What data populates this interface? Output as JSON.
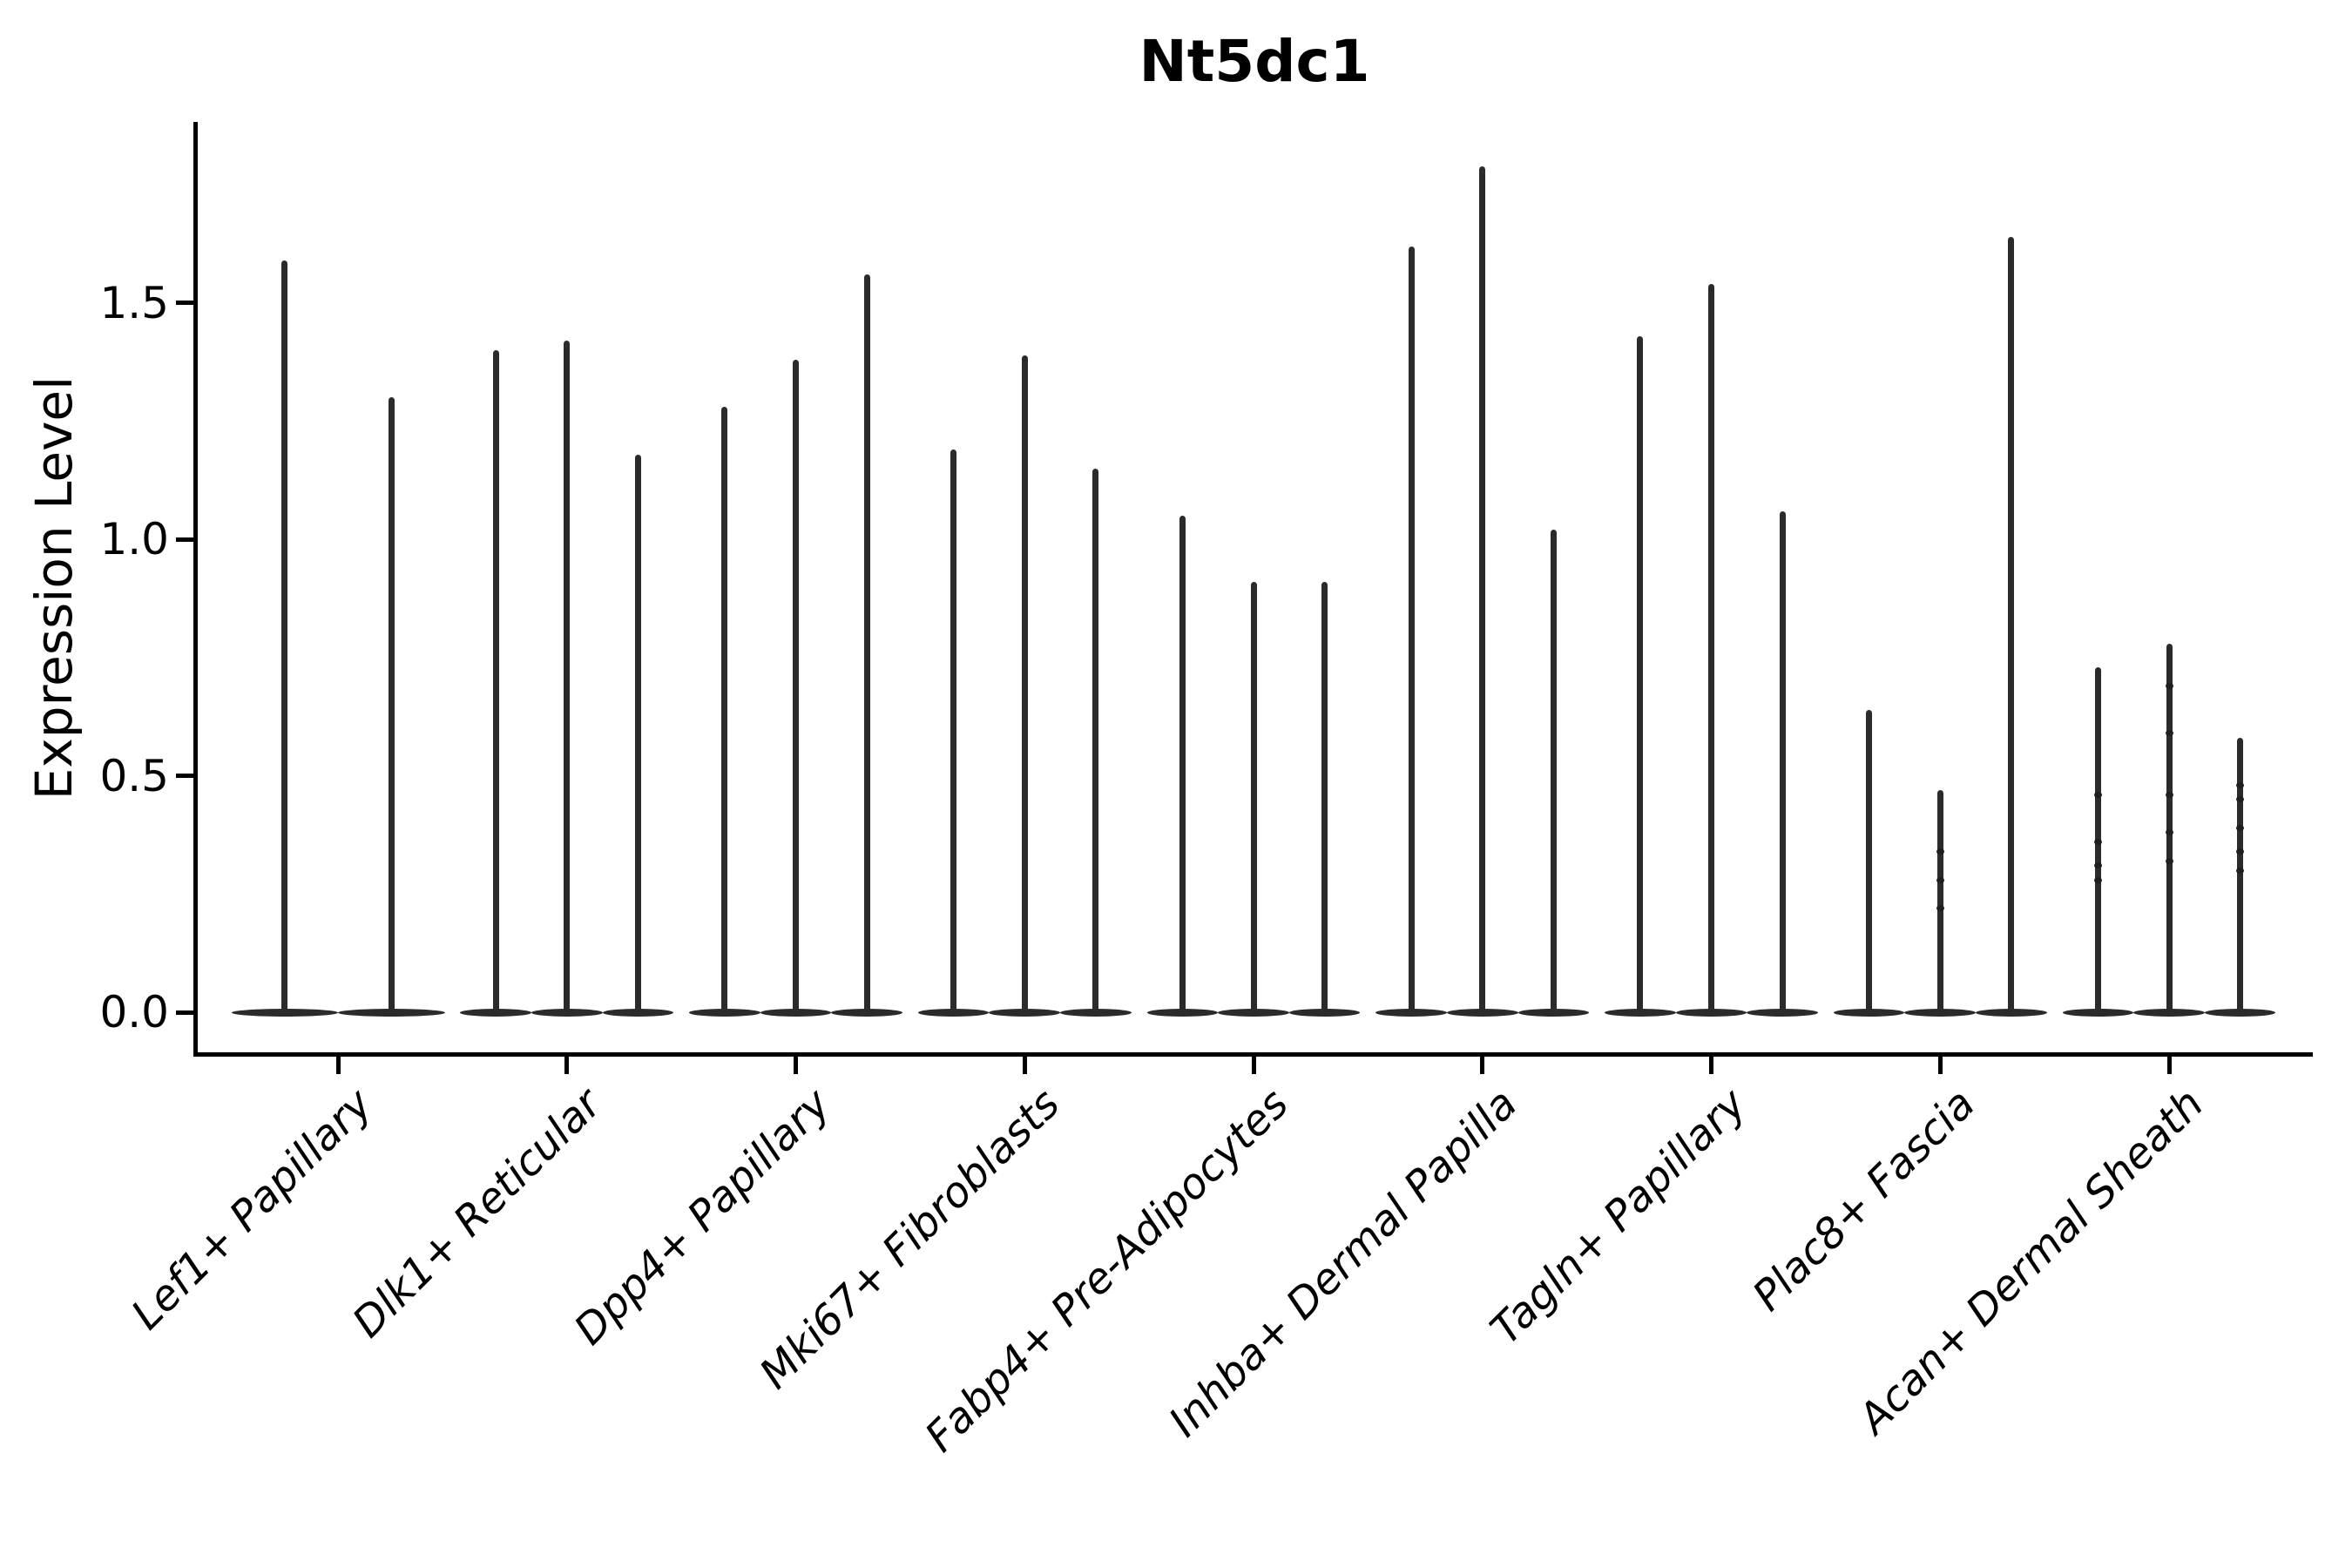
{
  "chart_data": {
    "type": "violin",
    "title": "Nt5dc1",
    "xlabel": "",
    "ylabel": "Expression Level",
    "ytick_labels": [
      "0.0",
      "0.5",
      "1.0",
      "1.5"
    ],
    "ytick_values": [
      0.0,
      0.5,
      1.0,
      1.5
    ],
    "ylim": [
      -0.09,
      1.88
    ],
    "grid": false,
    "legend": "none",
    "background": "#ffffff",
    "colors": {
      "violin": "#2b2b2b",
      "axis": "#000000",
      "text": "#000000"
    },
    "categories": [
      "Lef1+ Papillary",
      "Dlk1+ Reticular",
      "Dpp4+ Papillary",
      "Mki67+ Fibroblasts",
      "Fabp4+ Pre-Adipocytes",
      "Inhba+ Dermal Papilla",
      "Tagln+ Papillary",
      "Plac8+ Fascia",
      "Acan+ Dermal Sheath"
    ],
    "groups": [
      {
        "label": "Lef1+ Papillary",
        "violins": [
          {
            "peak": 1.59
          },
          {
            "peak": 1.3
          }
        ]
      },
      {
        "label": "Dlk1+ Reticular",
        "violins": [
          {
            "peak": 1.4
          },
          {
            "peak": 1.42
          },
          {
            "peak": 1.18
          }
        ]
      },
      {
        "label": "Dpp4+ Papillary",
        "violins": [
          {
            "peak": 1.28
          },
          {
            "peak": 1.38
          },
          {
            "peak": 1.56
          }
        ]
      },
      {
        "label": "Mki67+ Fibroblasts",
        "violins": [
          {
            "peak": 1.19
          },
          {
            "peak": 1.39
          },
          {
            "peak": 1.15
          }
        ]
      },
      {
        "label": "Fabp4+ Pre-Adipocytes",
        "violins": [
          {
            "peak": 1.05
          },
          {
            "peak": 0.91
          },
          {
            "peak": 0.91
          }
        ]
      },
      {
        "label": "Inhba+ Dermal Papilla",
        "violins": [
          {
            "peak": 1.62
          },
          {
            "peak": 1.79
          },
          {
            "peak": 1.02
          }
        ]
      },
      {
        "label": "Tagln+ Papillary",
        "violins": [
          {
            "peak": 1.43
          },
          {
            "peak": 1.54
          },
          {
            "peak": 1.06
          }
        ]
      },
      {
        "label": "Plac8+ Fascia",
        "violins": [
          {
            "peak": 0.64
          },
          {
            "peak": 0.47,
            "points": [
              0.34,
              0.28,
              0.22
            ]
          },
          {
            "peak": 1.64
          }
        ]
      },
      {
        "label": "Acan+ Dermal Sheath",
        "violins": [
          {
            "peak": 0.73,
            "points": [
              0.46,
              0.36,
              0.31,
              0.28
            ]
          },
          {
            "peak": 0.78,
            "points": [
              0.69,
              0.59,
              0.46,
              0.38,
              0.32
            ]
          },
          {
            "peak": 0.58,
            "points": [
              0.48,
              0.45,
              0.39,
              0.34,
              0.3
            ]
          }
        ]
      }
    ]
  }
}
